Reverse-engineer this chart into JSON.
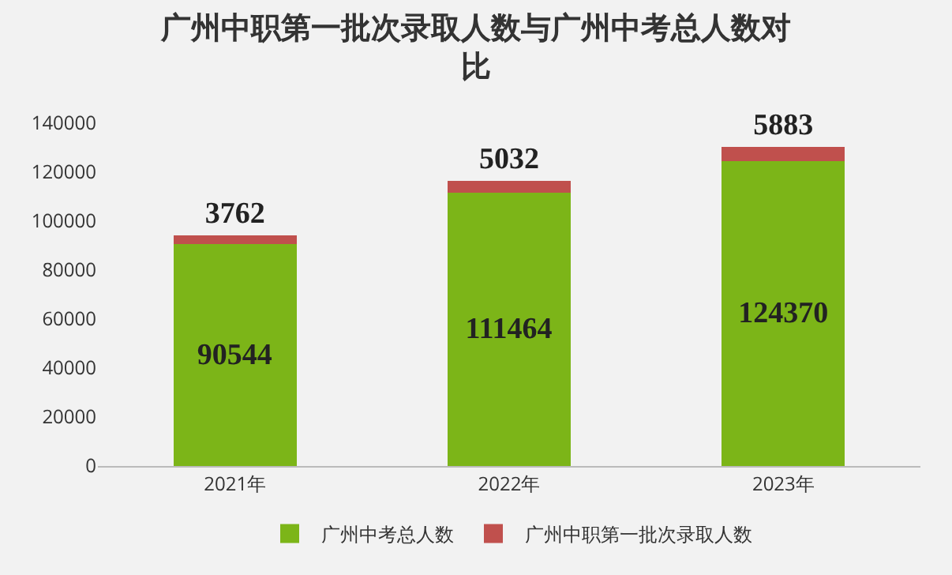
{
  "chart_data": {
    "type": "bar",
    "title": "广州中职第一批次录取人数与广州中考总人数对比",
    "categories": [
      "2021年",
      "2022年",
      "2023年"
    ],
    "stacked": true,
    "data_labels": true,
    "legend": "bottom",
    "grid": false,
    "ylim": [
      0,
      140000
    ],
    "yticks": [
      0,
      20000,
      40000,
      60000,
      80000,
      100000,
      120000,
      140000
    ],
    "series": [
      {
        "name": "广州中考总人数",
        "color": "#7cb518",
        "values": [
          90544,
          111464,
          124370
        ]
      },
      {
        "name": "广州中职第一批次录取人数",
        "color": "#c0504d",
        "values": [
          3762,
          5032,
          5883
        ]
      }
    ]
  }
}
